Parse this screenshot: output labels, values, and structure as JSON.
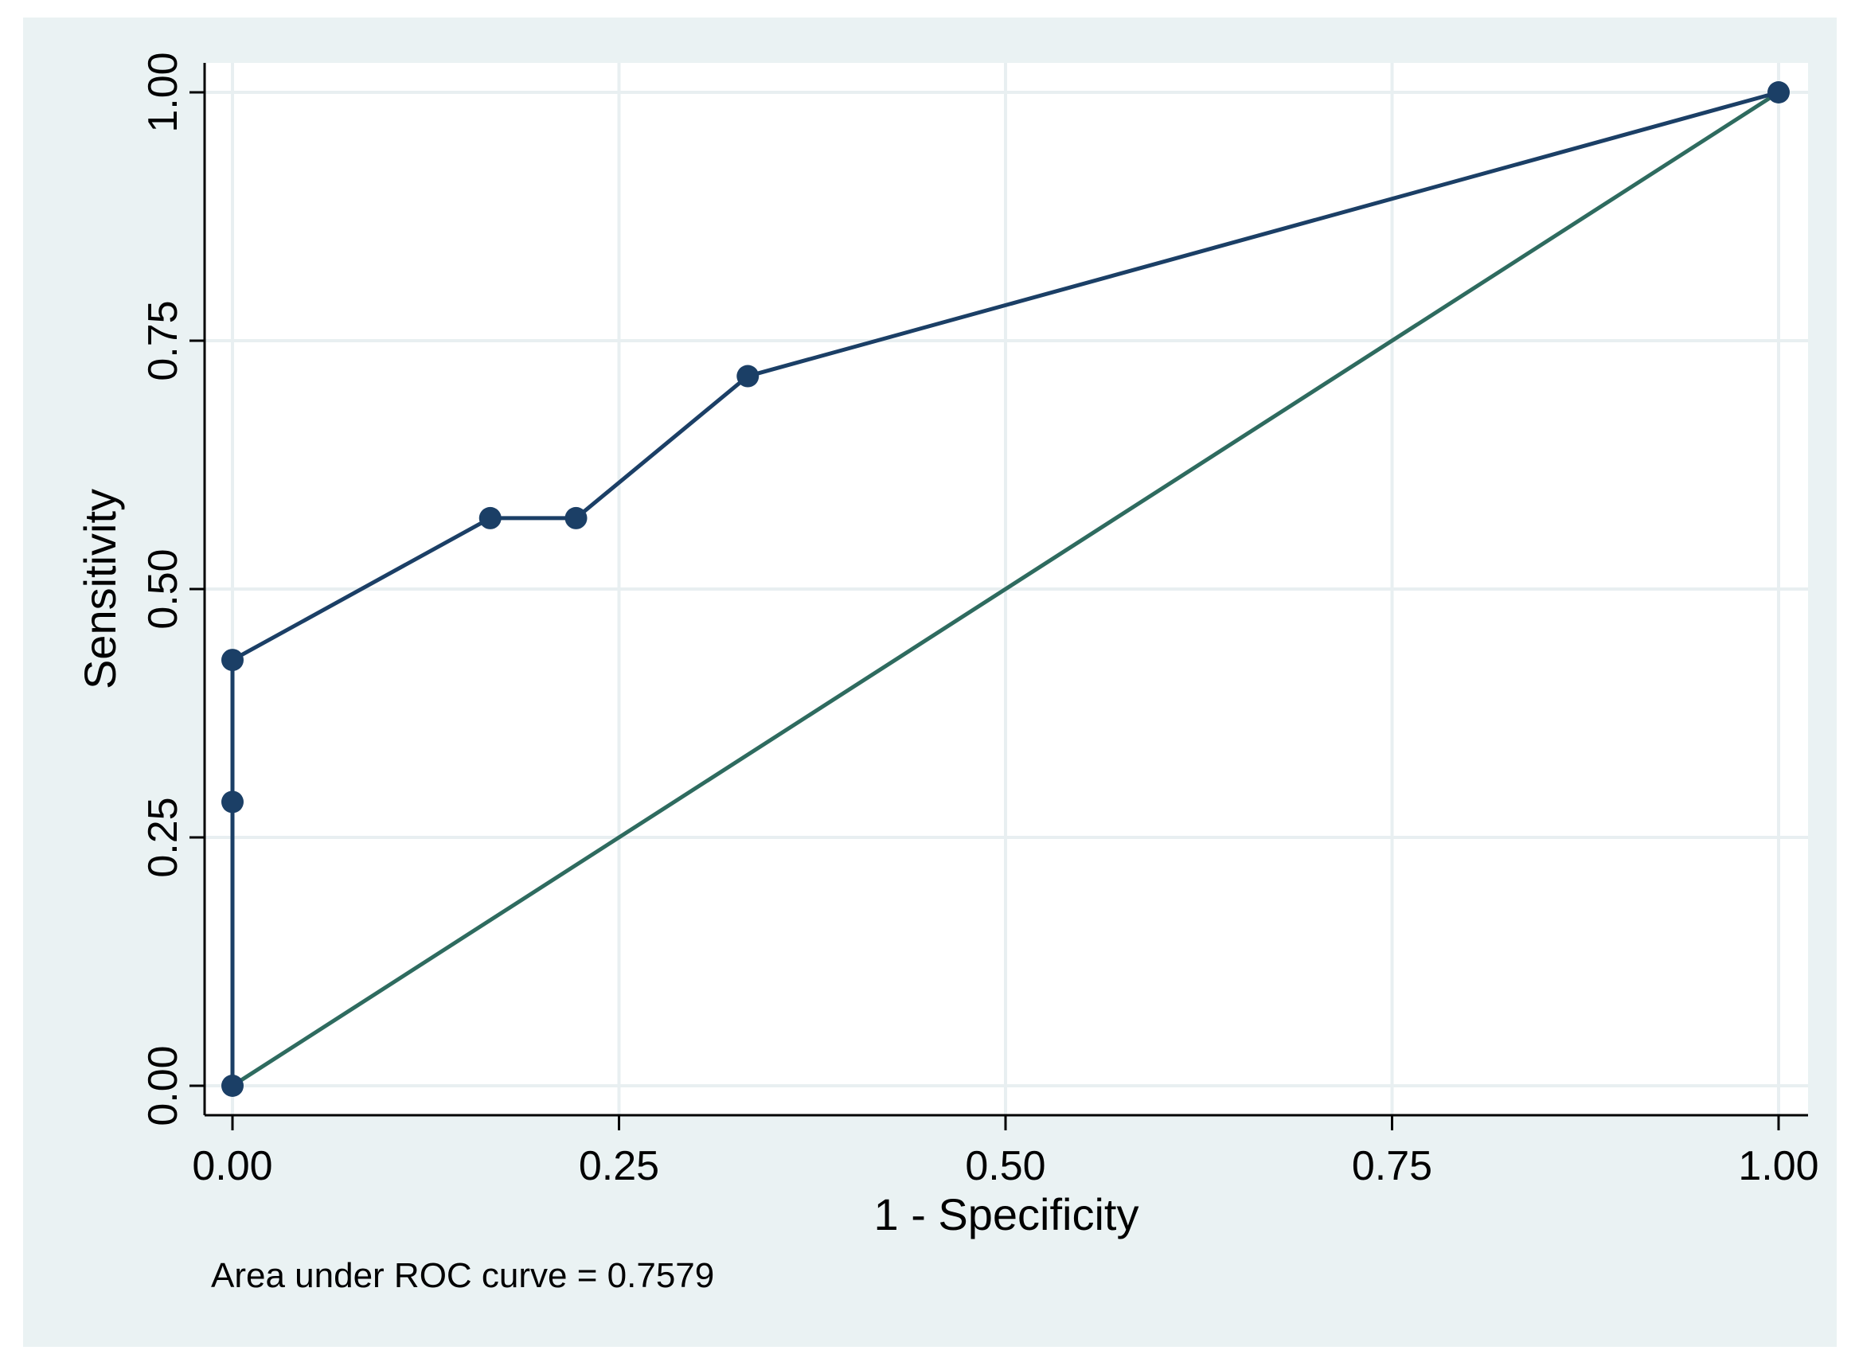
{
  "chart_data": {
    "type": "line",
    "xlabel": "1 - Specificity",
    "ylabel": "Sensitivity",
    "xlim": [
      0,
      1
    ],
    "ylim": [
      0,
      1
    ],
    "x_ticks": [
      "0.00",
      "0.25",
      "0.50",
      "0.75",
      "1.00"
    ],
    "y_ticks": [
      "0.00",
      "0.25",
      "0.50",
      "0.75",
      "1.00"
    ],
    "grid": true,
    "series": [
      {
        "color": "#1b3f66",
        "markers": true,
        "points": [
          {
            "x": 0.0,
            "y": 0.0
          },
          {
            "x": 0.0,
            "y": 0.2857
          },
          {
            "x": 0.0,
            "y": 0.4286
          },
          {
            "x": 0.1667,
            "y": 0.5714
          },
          {
            "x": 0.2222,
            "y": 0.5714
          },
          {
            "x": 0.3333,
            "y": 0.7143
          },
          {
            "x": 1.0,
            "y": 1.0
          }
        ]
      },
      {
        "color": "#2e6b5f",
        "markers": false,
        "points": [
          {
            "x": 0.0,
            "y": 0.0
          },
          {
            "x": 1.0,
            "y": 1.0
          }
        ]
      }
    ],
    "annotation": "Area under ROC curve = 0.7579",
    "colors": {
      "outer_background": "#eaf2f3",
      "plot_background": "#ffffff",
      "grid": "#e8eff1",
      "axis": "#000000"
    }
  }
}
